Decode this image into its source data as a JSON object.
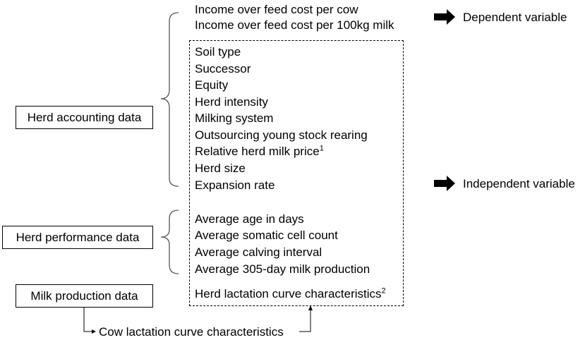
{
  "dependent_vars": [
    "Income over feed cost per cow",
    "Income over feed cost per 100kg milk"
  ],
  "dependent_label": "Dependent variable",
  "independent_label": "Independent variable",
  "herd_accounting": {
    "box_label": "Herd accounting data",
    "items": [
      "Soil type",
      "Successor",
      "Equity",
      "Herd intensity",
      "Milking system",
      "Outsourcing young stock rearing",
      "Relative herd milk price",
      "Herd size",
      "Expansion rate"
    ]
  },
  "herd_performance": {
    "box_label": "Herd performance data",
    "items": [
      "Average age in days",
      "Average somatic cell count",
      "Average calving interval",
      "Average 305-day milk production"
    ]
  },
  "milk_production": {
    "box_label": "Milk production data",
    "item": "Herd lactation curve characteristics",
    "sup": "2"
  },
  "relative_price_sup": "1",
  "cow_lactation_label": "Cow lactation curve characteristics",
  "colors": {
    "line": "#000000",
    "bracket": "#555555"
  },
  "icons": {
    "arrow": "block-right-arrow"
  }
}
